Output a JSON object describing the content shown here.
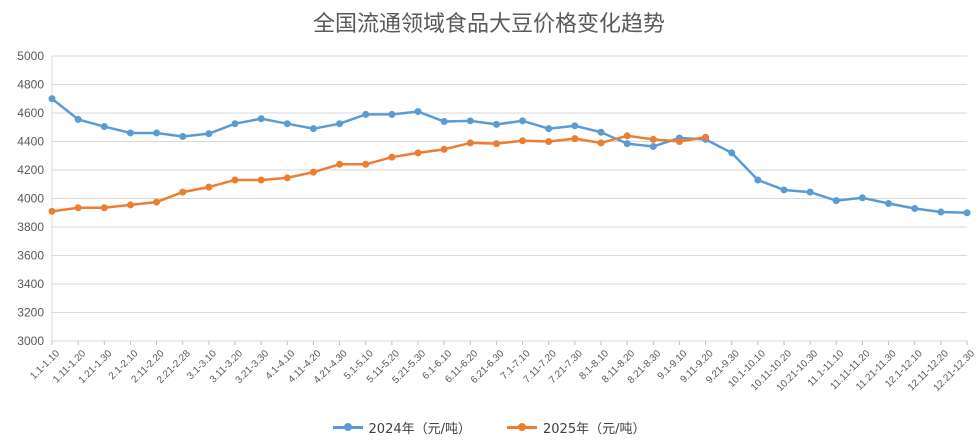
{
  "chart_data": {
    "type": "line",
    "title": "全国流通领域食品大豆价格变化趋势",
    "xlabel": "",
    "ylabel": "",
    "ylim": [
      3000,
      5000
    ],
    "yticks": [
      3000,
      3200,
      3400,
      3600,
      3800,
      4000,
      4200,
      4400,
      4600,
      4800,
      5000
    ],
    "grid": true,
    "legend_position": "bottom",
    "categories": [
      "1.1-1.10",
      "1.11-1.20",
      "1.21-1.30",
      "2.1-2.10",
      "2.11-2.20",
      "2.21-2.28",
      "3.1-3.10",
      "3.11-3.20",
      "3.21-3.30",
      "4.1-4.10",
      "4.11-4.20",
      "4.21-4.30",
      "5.1-5.10",
      "5.11-5.20",
      "5.21-5.30",
      "6.1-6.10",
      "6.11-6.20",
      "6.21-6.30",
      "7.1-7.10",
      "7.11-7.20",
      "7.21-7.30",
      "8.1-8.10",
      "8.11-8.20",
      "8.21-8.30",
      "9.1-9.10",
      "9.11-9.20",
      "9.21-9.30",
      "10.1-10.10",
      "10.11-10.20",
      "10.21-10.30",
      "11.1-11.10",
      "11.11-11.20",
      "11.21-11.30",
      "12.1-12.10",
      "12.11-12.20",
      "12.21-12.30"
    ],
    "series": [
      {
        "name": "2024年（元/吨）",
        "color": "#5b9bd5",
        "values": [
          4700,
          4555,
          4505,
          4460,
          4460,
          4435,
          4455,
          4525,
          4560,
          4525,
          4490,
          4525,
          4590,
          4590,
          4610,
          4540,
          4545,
          4520,
          4545,
          4490,
          4510,
          4465,
          4385,
          4365,
          4425,
          4415,
          4320,
          4130,
          4060,
          4045,
          3985,
          4005,
          3965,
          3930,
          3905,
          3900
        ]
      },
      {
        "name": "2025年（元/吨）",
        "color": "#ed7d31",
        "values": [
          3910,
          3935,
          3935,
          3955,
          3975,
          4045,
          4080,
          4130,
          4130,
          4145,
          4185,
          4240,
          4240,
          4290,
          4320,
          4345,
          4390,
          4385,
          4405,
          4400,
          4420,
          4390,
          4440,
          4415,
          4400,
          4430,
          null,
          null,
          null,
          null,
          null,
          null,
          null,
          null,
          null,
          null
        ]
      }
    ]
  }
}
